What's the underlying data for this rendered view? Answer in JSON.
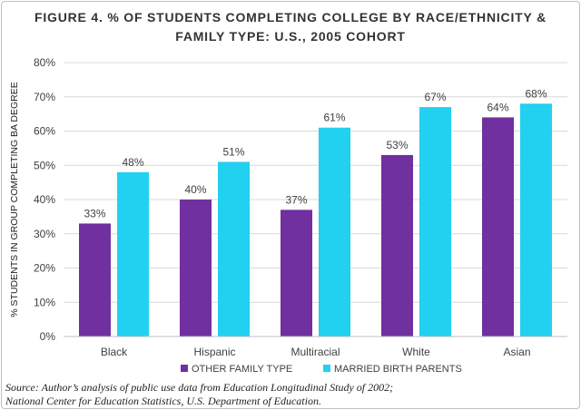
{
  "chart_data": {
    "type": "bar",
    "title_lines": [
      "FIGURE 4. % OF STUDENTS COMPLETING COLLEGE BY RACE/ETHNICITY &",
      "FAMILY TYPE: U.S., 2005 COHORT"
    ],
    "xlabel": "",
    "ylabel": "% STUDENTS IN GROUP COMPLETING BA DEGREE",
    "categories": [
      "Black",
      "Hispanic",
      "Multiracial",
      "White",
      "Asian"
    ],
    "series": [
      {
        "name": "OTHER FAMILY TYPE",
        "values": [
          33,
          40,
          37,
          53,
          64
        ],
        "data_labels": [
          "33%",
          "40%",
          "37%",
          "53%",
          "64%"
        ]
      },
      {
        "name": "MARRIED BIRTH PARENTS",
        "values": [
          48,
          51,
          61,
          67,
          68
        ],
        "data_labels": [
          "48%",
          "51%",
          "61%",
          "67%",
          "68%"
        ]
      }
    ],
    "ylim": [
      0,
      80
    ],
    "yticks": [
      0,
      10,
      20,
      30,
      40,
      50,
      60,
      70,
      80
    ],
    "ytick_labels": [
      "0%",
      "10%",
      "20%",
      "30%",
      "40%",
      "50%",
      "60%",
      "70%",
      "80%"
    ],
    "grid": true,
    "legend_position": "bottom",
    "colors": {
      "OTHER FAMILY TYPE": "#7030a0",
      "MARRIED BIRTH PARENTS": "#22d0f0",
      "gridline": "#d9d9d9",
      "text": "#404040"
    }
  },
  "source_lines": [
    "Source: Author’s analysis of public use data from Education Longitudinal Study of 2002;",
    "National Center for Education Statistics, U.S. Department of Education."
  ]
}
